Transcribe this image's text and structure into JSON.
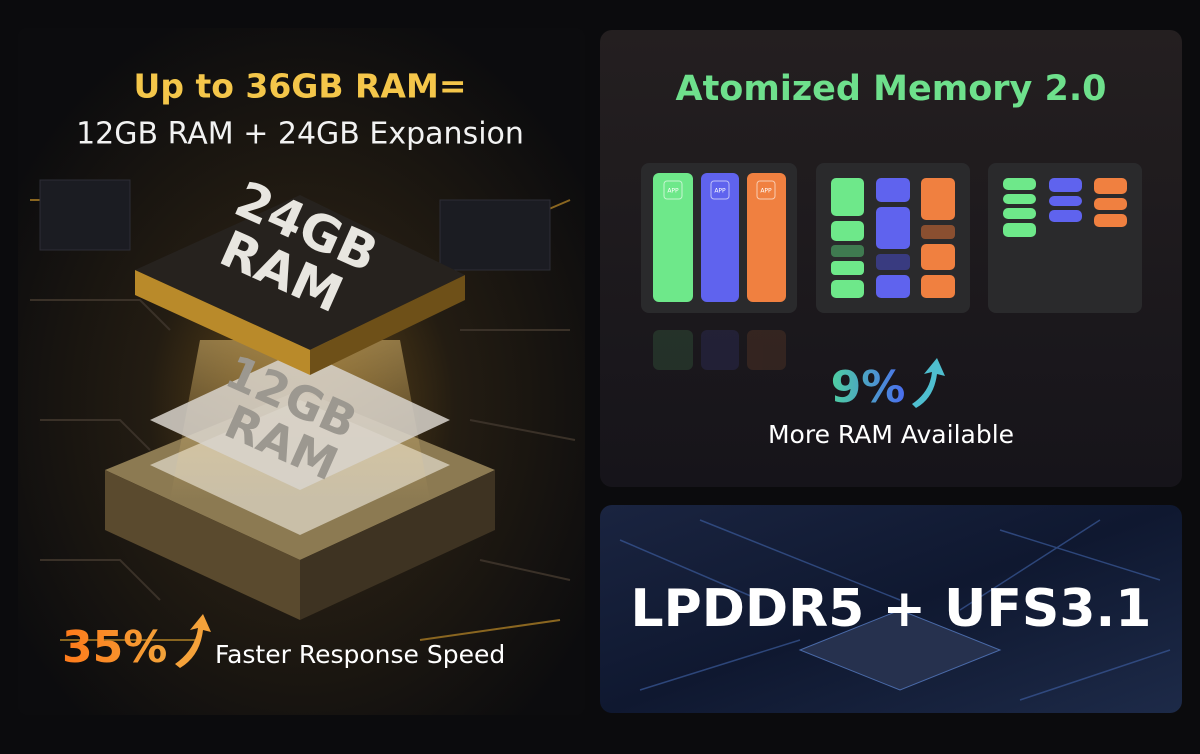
{
  "left_panel": {
    "headline": "Up to 36GB RAM=",
    "subheadline": "12GB RAM + 24GB Expansion",
    "chip_top_label": [
      "24GB",
      "RAM"
    ],
    "chip_bottom_label": [
      "12GB",
      "RAM"
    ],
    "stat": "35%",
    "stat_caption": "Faster Response Speed"
  },
  "right_top_panel": {
    "title": "Atomized Memory 2.0",
    "app_labels": [
      "APP",
      "APP",
      "APP"
    ],
    "stat": "9%",
    "stat_caption": "More RAM Available"
  },
  "right_bottom_panel": {
    "title": "LPDDR5 + UFS3.1"
  }
}
